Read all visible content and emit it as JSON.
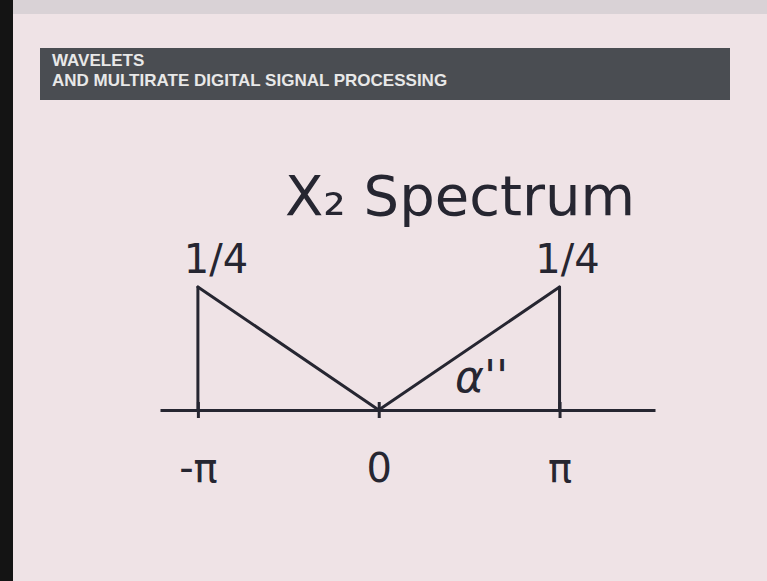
{
  "header": [
    "WAVELETS",
    "AND MULTIRATE DIGITAL SIGNAL PROCESSING"
  ],
  "chart_data": {
    "type": "line",
    "title": "X₂ Spectrum",
    "annotation": "α''",
    "x": [
      -3.14159,
      0,
      3.14159
    ],
    "values": [
      0.25,
      0,
      0.25
    ],
    "value_labels": [
      "1/4",
      null,
      "1/4"
    ],
    "data_labels": true,
    "xlim": [
      -3.8,
      4.8
    ],
    "ylim": [
      0,
      0.25
    ],
    "xticks": [
      {
        "value": -3.14159,
        "label": "-π"
      },
      0,
      {
        "value": 3.14159,
        "label": "π"
      }
    ],
    "tick_labels": "x",
    "color": "#262631"
  }
}
